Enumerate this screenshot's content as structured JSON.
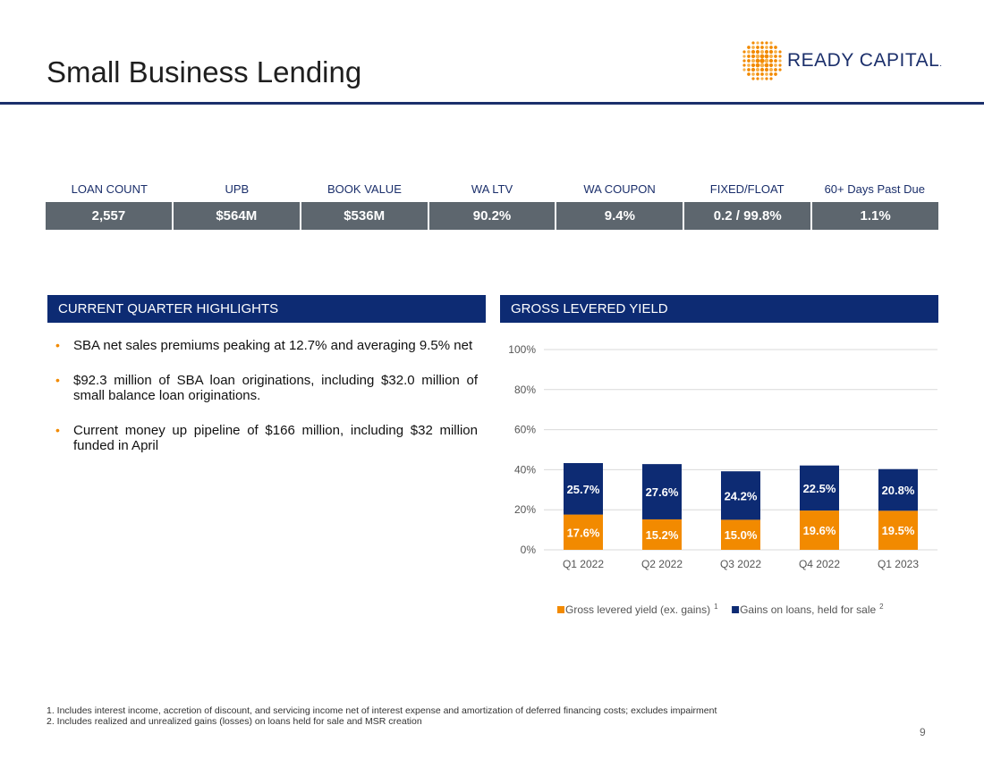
{
  "title": "Small Business Lending",
  "logo": {
    "text": "READY CAPITAL",
    "mark": "."
  },
  "metrics": {
    "labels": [
      "LOAN COUNT",
      "UPB",
      "BOOK VALUE",
      "WA LTV",
      "WA COUPON",
      "FIXED/FLOAT",
      "60+ Days Past Due"
    ],
    "values": [
      "2,557",
      "$564M",
      "$536M",
      "90.2%",
      "9.4%",
      "0.2 / 99.8%",
      "1.1%"
    ]
  },
  "highlights": {
    "header": "CURRENT QUARTER HIGHLIGHTS",
    "bullets": [
      "SBA net sales premiums peaking at 12.7% and averaging 9.5% net",
      "$92.3 million of SBA loan originations, including $32.0 million of small balance loan originations.",
      "Current money up pipeline of $166 million, including $32 million funded in April"
    ]
  },
  "chart_header": "GROSS LEVERED YIELD",
  "chart_data": {
    "type": "bar",
    "stacked": true,
    "categories": [
      "Q1 2022",
      "Q2 2022",
      "Q3 2022",
      "Q4 2022",
      "Q1 2023"
    ],
    "series": [
      {
        "name": "Gross levered yield (ex. gains)",
        "superscript": "1",
        "values": [
          17.6,
          15.2,
          15.0,
          19.6,
          19.5
        ],
        "labels": [
          "17.6%",
          "15.2%",
          "15.0%",
          "19.6%",
          "19.5%"
        ],
        "color": "#f28a00"
      },
      {
        "name": "Gains on loans, held for sale",
        "superscript": "2",
        "values": [
          25.7,
          27.6,
          24.2,
          22.5,
          20.8
        ],
        "labels": [
          "25.7%",
          "27.6%",
          "24.2%",
          "22.5%",
          "20.8%"
        ],
        "color": "#0d2b73"
      }
    ],
    "yticks": [
      "0%",
      "20%",
      "40%",
      "60%",
      "80%",
      "100%"
    ],
    "ylim": [
      0,
      100
    ],
    "grid": true,
    "legend": "bottom"
  },
  "footnotes": [
    "1. Includes interest income, accretion of discount, and servicing income net of interest expense and amortization of deferred financing costs; excludes impairment",
    "2. Includes realized and unrealized gains (losses) on loans held for sale and MSR creation"
  ],
  "page_number": "9",
  "colors": {
    "navy": "#0d2b73",
    "orange": "#f28a00",
    "grey": "#5d666e"
  }
}
